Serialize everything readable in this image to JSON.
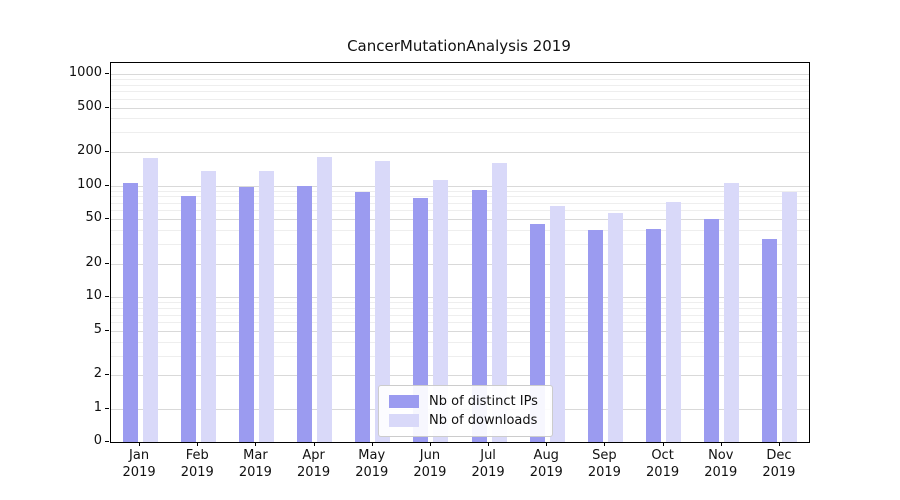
{
  "chart_data": {
    "type": "bar",
    "title": "CancerMutationAnalysis 2019",
    "categories": [
      "Jan 2019",
      "Feb 2019",
      "Mar 2019",
      "Apr 2019",
      "May 2019",
      "Jun 2019",
      "Jul 2019",
      "Aug 2019",
      "Sep 2019",
      "Oct 2019",
      "Nov 2019",
      "Dec 2019"
    ],
    "series": [
      {
        "name": "Nb of distinct IPs",
        "color": "#9b9bf0",
        "values": [
          105,
          80,
          97,
          100,
          88,
          78,
          92,
          45,
          40,
          41,
          50,
          33
        ]
      },
      {
        "name": "Nb of downloads",
        "color": "#d9d9f9",
        "values": [
          175,
          135,
          135,
          180,
          165,
          112,
          158,
          65,
          57,
          72,
          105,
          88
        ]
      }
    ],
    "yscale": "symlog",
    "y_ticks": [
      0,
      1,
      2,
      5,
      10,
      20,
      50,
      100,
      200,
      500,
      1000
    ],
    "ylim": [
      0,
      1250
    ],
    "grid": "horizontal",
    "legend_position": "bottom-center"
  }
}
